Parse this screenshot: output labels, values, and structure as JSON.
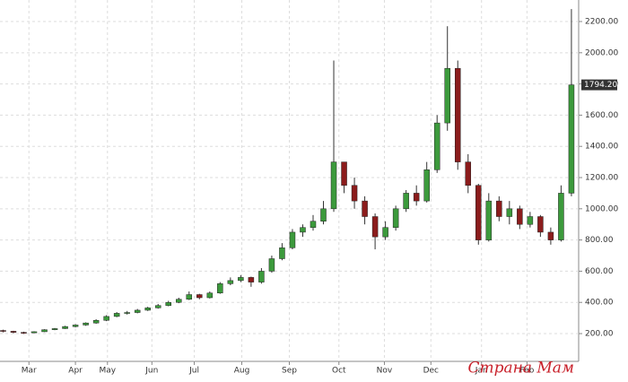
{
  "chart_data": {
    "type": "candlestick",
    "open": [
      220,
      215,
      208,
      205,
      212,
      225,
      232,
      245,
      255,
      268,
      285,
      310,
      330,
      335,
      350,
      365,
      380,
      400,
      420,
      450,
      430,
      460,
      520,
      540,
      560,
      530,
      600,
      680,
      750,
      850,
      880,
      920,
      1000,
      1300,
      1150,
      1050,
      950,
      820,
      880,
      1000,
      1100,
      1050,
      1250,
      1550,
      1900,
      1300,
      1150,
      800,
      1050,
      950,
      1000,
      900,
      950,
      850,
      800,
      1100
    ],
    "high": [
      225,
      218,
      212,
      215,
      228,
      236,
      250,
      260,
      272,
      292,
      318,
      338,
      345,
      358,
      372,
      390,
      410,
      430,
      470,
      455,
      470,
      530,
      560,
      575,
      565,
      620,
      700,
      780,
      870,
      900,
      960,
      1050,
      1950,
      1290,
      1200,
      1080,
      970,
      920,
      1020,
      1120,
      1150,
      1300,
      1600,
      2170,
      1950,
      1350,
      1160,
      1100,
      1080,
      1050,
      1020,
      980,
      960,
      880,
      1150,
      2280
    ],
    "low": [
      208,
      202,
      198,
      204,
      210,
      222,
      230,
      240,
      250,
      263,
      280,
      305,
      322,
      330,
      345,
      360,
      375,
      395,
      415,
      420,
      425,
      455,
      510,
      530,
      500,
      520,
      590,
      670,
      740,
      820,
      860,
      900,
      980,
      1100,
      1000,
      900,
      740,
      800,
      860,
      980,
      1020,
      1040,
      1230,
      1500,
      1250,
      1100,
      770,
      790,
      920,
      900,
      870,
      880,
      820,
      770,
      790,
      1080
    ],
    "close": [
      215,
      208,
      205,
      212,
      225,
      232,
      245,
      255,
      268,
      285,
      310,
      330,
      335,
      350,
      365,
      380,
      400,
      420,
      450,
      430,
      460,
      520,
      540,
      560,
      530,
      600,
      680,
      750,
      850,
      880,
      920,
      1000,
      1300,
      1150,
      1050,
      950,
      820,
      880,
      1000,
      1100,
      1050,
      1250,
      1550,
      1900,
      1300,
      1150,
      800,
      1050,
      950,
      1000,
      900,
      950,
      850,
      800,
      1100,
      1794.2
    ],
    "last_close_label": "1794.20",
    "up_color": "#3c9a3c",
    "down_color": "#8b1c1c",
    "wick_color": "#333333",
    "xlim": [
      -0.3,
      55.7
    ],
    "xticks": [
      {
        "value": 2.5,
        "label": "Mar"
      },
      {
        "value": 7.0,
        "label": "Apr"
      },
      {
        "value": 10.1,
        "label": "May"
      },
      {
        "value": 14.4,
        "label": "Jun"
      },
      {
        "value": 18.5,
        "label": "Jul"
      },
      {
        "value": 23.1,
        "label": "Aug"
      },
      {
        "value": 27.7,
        "label": "Sep"
      },
      {
        "value": 32.5,
        "label": "Oct"
      },
      {
        "value": 36.9,
        "label": "Nov"
      },
      {
        "value": 41.4,
        "label": "Dec"
      },
      {
        "value": 46.3,
        "label": "Jan"
      },
      {
        "value": 50.7,
        "label": "Feb"
      }
    ],
    "ylim": [
      22,
      2338
    ],
    "yticks": [
      {
        "value": 200,
        "label": "200.00"
      },
      {
        "value": 400,
        "label": "400.00"
      },
      {
        "value": 600,
        "label": "600.00"
      },
      {
        "value": 800,
        "label": "800.00"
      },
      {
        "value": 1000,
        "label": "1000.00"
      },
      {
        "value": 1200,
        "label": "1200.00"
      },
      {
        "value": 1400,
        "label": "1400.00"
      },
      {
        "value": 1600,
        "label": "1600.00"
      },
      {
        "value": 1800,
        "label": "1800.00"
      },
      {
        "value": 2000,
        "label": "2000.00"
      },
      {
        "value": 2200,
        "label": "2200.00"
      }
    ],
    "grid": true,
    "watermark": "Страна Мам"
  }
}
